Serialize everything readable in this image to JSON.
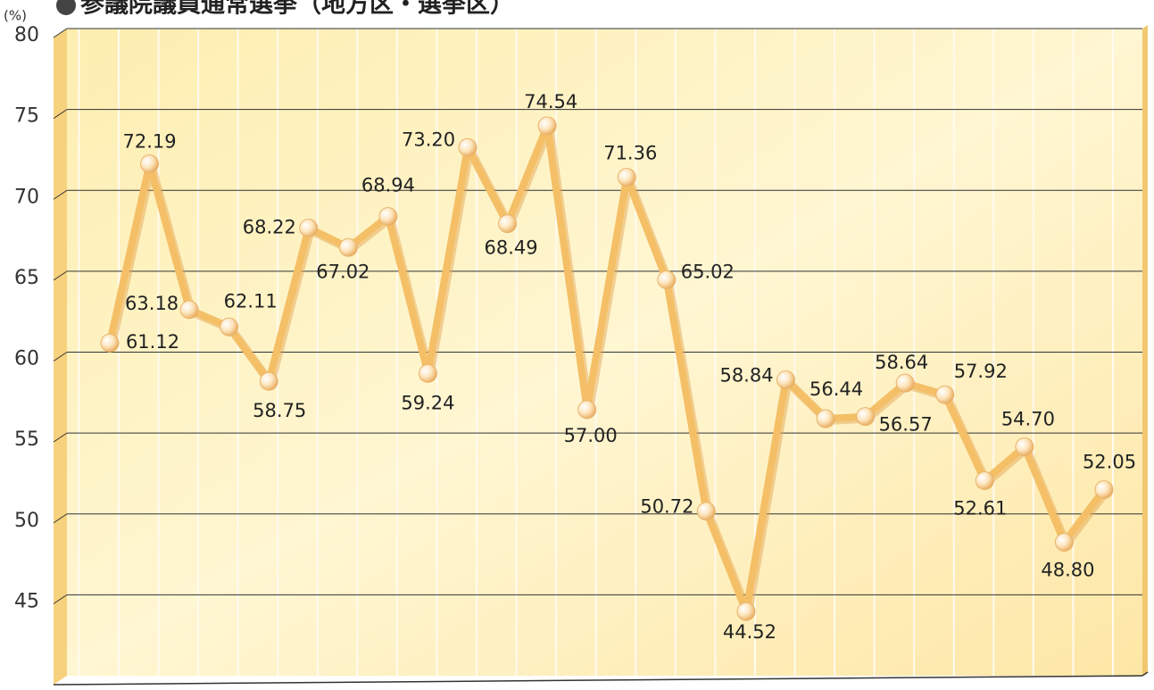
{
  "chart_data": {
    "type": "line",
    "title": "参議院議員通常選挙（地方区・選挙区）",
    "y_unit": "(%)",
    "categories": [
      null,
      null,
      null,
      null,
      null,
      null,
      null,
      null,
      null,
      null,
      null,
      null,
      null,
      null,
      null,
      null,
      null,
      null,
      null,
      null,
      null,
      null,
      null,
      null,
      null,
      null
    ],
    "series": [
      {
        "name": null,
        "color": "#f4bf66",
        "values": [
          61.12,
          72.19,
          63.18,
          62.11,
          58.75,
          68.22,
          67.02,
          68.94,
          59.24,
          73.2,
          68.49,
          74.54,
          57.0,
          71.36,
          65.02,
          50.72,
          44.52,
          58.84,
          56.44,
          56.57,
          58.64,
          57.92,
          52.61,
          54.7,
          48.8,
          52.05
        ],
        "value_labels": [
          "61.12",
          "72.19",
          "63.18",
          "62.11",
          "58.75",
          "68.22",
          "67.02",
          "68.94",
          "59.24",
          "73.20",
          "68.49",
          "74.54",
          "57.00",
          "71.36",
          "65.02",
          "50.72",
          "44.52",
          "58.84",
          "56.44",
          "56.57",
          "58.64",
          "57.92",
          "52.61",
          "54.70",
          "48.80",
          "52.05"
        ]
      }
    ],
    "ylim": [
      40,
      80
    ],
    "yticks": [
      45,
      50,
      55,
      60,
      65,
      70,
      75,
      80
    ],
    "grid": true
  }
}
